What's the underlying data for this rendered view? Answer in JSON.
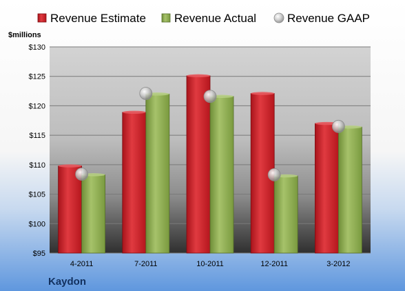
{
  "chart_data": {
    "type": "bar",
    "company": "Kaydon",
    "unit_label": "$millions",
    "categories": [
      "4-2011",
      "7-2011",
      "10-2011",
      "12-2011",
      "3-2012"
    ],
    "series": [
      {
        "name": "Revenue Estimate",
        "values": [
          109.8,
          118.9,
          125.1,
          122.1,
          117.0
        ],
        "color": "#cc2229"
      },
      {
        "name": "Revenue Actual",
        "values": [
          108.3,
          122.0,
          121.6,
          108.1,
          116.4
        ],
        "color": "#8fad4f"
      }
    ],
    "markers": [
      {
        "name": "Revenue GAAP",
        "values": [
          108.4,
          122.1,
          121.6,
          108.3,
          116.5
        ],
        "color": "#a9a9a9"
      }
    ],
    "ylim": [
      95,
      130
    ],
    "yticks": [
      95,
      100,
      105,
      110,
      115,
      120,
      125,
      130
    ],
    "ytick_labels": [
      "$95",
      "$100",
      "$105",
      "$110",
      "$115",
      "$120",
      "$125",
      "$130"
    ],
    "grid": true,
    "legend": "top"
  }
}
